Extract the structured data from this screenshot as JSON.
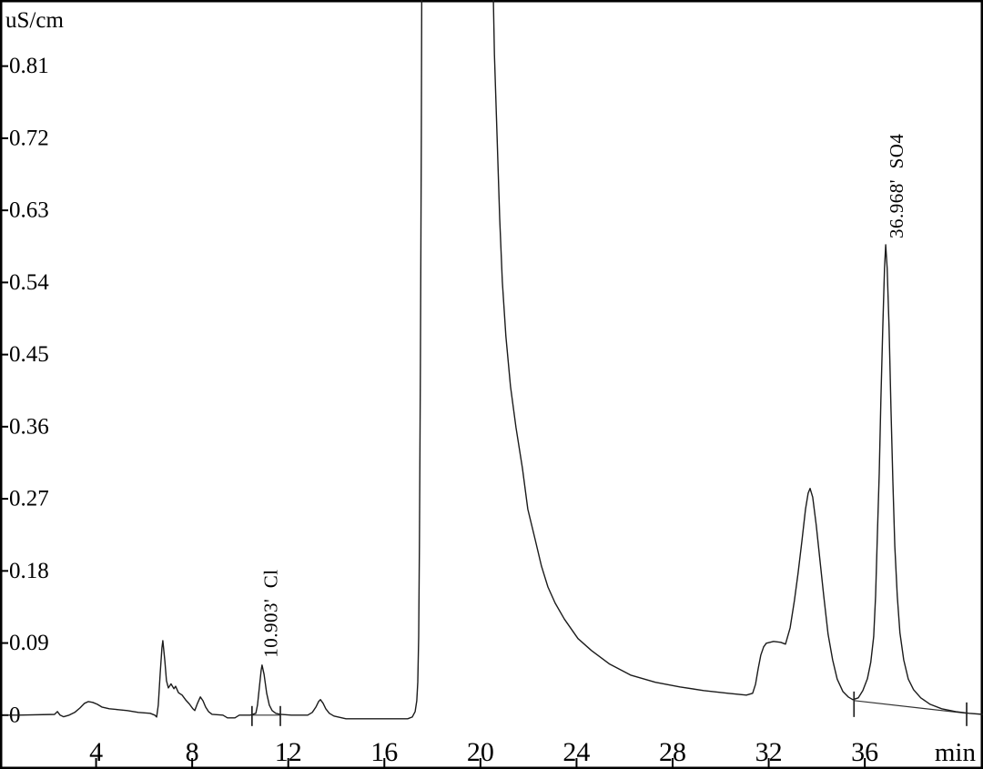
{
  "chart_data": {
    "type": "line",
    "title": "",
    "ylabel": "uS/cm",
    "xlabel": "min",
    "grid": false,
    "legend": "none",
    "x_axis": {
      "min": 0,
      "max": 40.92,
      "ticks": [
        4,
        8,
        12,
        16,
        20,
        24,
        28,
        32,
        36
      ],
      "tick_labels": [
        "4",
        "8",
        "12",
        "16",
        "20",
        "24",
        "28",
        "32",
        "36"
      ],
      "unit_label": "min"
    },
    "y_axis": {
      "min": -0.0672,
      "max": 0.8925,
      "ticks": [
        0,
        0.09,
        0.18,
        0.27,
        0.36,
        0.45,
        0.54,
        0.63,
        0.72,
        0.81
      ],
      "tick_labels": [
        "0",
        "0.09",
        "0.18",
        "0.27",
        "0.36",
        "0.45",
        "0.54",
        "0.63",
        "0.72",
        "0.81"
      ],
      "unit_label": "uS/cm"
    },
    "peaks": [
      {
        "label": "10.903'  Cl",
        "retention_time_min": 10.903,
        "analyte": "Cl",
        "apex_t": 10.91,
        "apex_v": 0.0625,
        "label_t": 11.27,
        "label_v": 0.0716
      },
      {
        "label": "36.968'  SO4",
        "retention_time_min": 36.968,
        "analyte": "SO4",
        "apex_t": 36.87,
        "apex_v": 0.587,
        "label_t": 37.32,
        "label_v": 0.595
      }
    ],
    "unlabeled_features": [
      {
        "t": 3.7,
        "v": 0.017,
        "note": "broad injection bump"
      },
      {
        "t": 6.78,
        "v": 0.093,
        "note": "sharp early peak"
      },
      {
        "t": 7.2,
        "v": 0.038,
        "note": "trailing shoulder"
      },
      {
        "t": 8.34,
        "v": 0.023,
        "note": "small peak"
      },
      {
        "t": 13.34,
        "v": 0.019,
        "note": "small peak"
      },
      {
        "t": 19.0,
        "v": "off-scale",
        "note": "large eluent/system peak, clipped at top from t=17.6 to t=20.5"
      },
      {
        "t": 32.2,
        "v": 0.092,
        "note": "shoulder hump"
      },
      {
        "t": 33.72,
        "v": 0.283,
        "note": "unlabeled large peak"
      }
    ],
    "integration_ticks": [
      {
        "t": 10.49,
        "v1": 0.0114,
        "v2": -0.0136
      },
      {
        "t": 11.67,
        "v1": 0.0114,
        "v2": -0.0136
      },
      {
        "t": 35.55,
        "v1": 0.0295,
        "v2": -0.0023
      },
      {
        "t": 40.24,
        "v1": 0.0159,
        "v2": -0.0136
      }
    ],
    "integration_baselines": [
      {
        "t1": 10.49,
        "v1": 0.0,
        "t2": 11.67,
        "v2": 0.0
      },
      {
        "t1": 35.55,
        "v1": 0.0182,
        "t2": 40.24,
        "v2": 0.0023
      }
    ],
    "trace": [
      [
        0.15,
        0
      ],
      [
        0.76,
        0
      ],
      [
        2.27,
        0.001
      ],
      [
        2.39,
        0.0045
      ],
      [
        2.5,
        0
      ],
      [
        2.65,
        -0.002
      ],
      [
        2.88,
        0
      ],
      [
        3.11,
        0.0034
      ],
      [
        3.33,
        0.009
      ],
      [
        3.52,
        0.0148
      ],
      [
        3.68,
        0.017
      ],
      [
        3.86,
        0.0159
      ],
      [
        4.05,
        0.0136
      ],
      [
        4.24,
        0.0102
      ],
      [
        4.55,
        0.008
      ],
      [
        4.92,
        0.0068
      ],
      [
        5.3,
        0.0057
      ],
      [
        5.76,
        0.0034
      ],
      [
        6.25,
        0.0023
      ],
      [
        6.44,
        0
      ],
      [
        6.52,
        -0.0023
      ],
      [
        6.59,
        0.0125
      ],
      [
        6.67,
        0.052
      ],
      [
        6.74,
        0.084
      ],
      [
        6.78,
        0.093
      ],
      [
        6.86,
        0.068
      ],
      [
        6.93,
        0.043
      ],
      [
        7.01,
        0.034
      ],
      [
        7.12,
        0.039
      ],
      [
        7.24,
        0.033
      ],
      [
        7.31,
        0.036
      ],
      [
        7.43,
        0.028
      ],
      [
        7.58,
        0.025
      ],
      [
        7.73,
        0.019
      ],
      [
        7.88,
        0.014
      ],
      [
        8.03,
        0.008
      ],
      [
        8.11,
        0.0057
      ],
      [
        8.22,
        0.0148
      ],
      [
        8.34,
        0.0227
      ],
      [
        8.45,
        0.018
      ],
      [
        8.56,
        0.0102
      ],
      [
        8.68,
        0.0045
      ],
      [
        8.83,
        0.0011
      ],
      [
        9.28,
        0
      ],
      [
        9.47,
        -0.0034
      ],
      [
        9.78,
        -0.0034
      ],
      [
        9.96,
        0
      ],
      [
        10.42,
        0
      ],
      [
        10.65,
        0.0023
      ],
      [
        10.72,
        0.0125
      ],
      [
        10.8,
        0.0352
      ],
      [
        10.87,
        0.0557
      ],
      [
        10.91,
        0.0625
      ],
      [
        10.99,
        0.0511
      ],
      [
        11.1,
        0.0273
      ],
      [
        11.21,
        0.0125
      ],
      [
        11.33,
        0.0057
      ],
      [
        11.48,
        0.0023
      ],
      [
        11.67,
        0.0011
      ],
      [
        12.13,
        0
      ],
      [
        12.81,
        0
      ],
      [
        13.0,
        0.0034
      ],
      [
        13.15,
        0.0102
      ],
      [
        13.26,
        0.017
      ],
      [
        13.34,
        0.0193
      ],
      [
        13.45,
        0.0148
      ],
      [
        13.56,
        0.008
      ],
      [
        13.71,
        0.0023
      ],
      [
        13.9,
        -0.0011
      ],
      [
        14.4,
        -0.0045
      ],
      [
        15.9,
        -0.0045
      ],
      [
        16.97,
        -0.0045
      ],
      [
        17.16,
        -0.0023
      ],
      [
        17.28,
        0.0045
      ],
      [
        17.35,
        0.018
      ],
      [
        17.39,
        0.041
      ],
      [
        17.43,
        0.098
      ],
      [
        17.46,
        0.211
      ],
      [
        17.5,
        0.439
      ],
      [
        17.54,
        0.723
      ],
      [
        17.56,
        0.95
      ],
      [
        20.5,
        0.95
      ],
      [
        20.58,
        0.825
      ],
      [
        20.69,
        0.723
      ],
      [
        20.8,
        0.62
      ],
      [
        20.91,
        0.541
      ],
      [
        21.06,
        0.473
      ],
      [
        21.25,
        0.41
      ],
      [
        21.48,
        0.359
      ],
      [
        21.75,
        0.308
      ],
      [
        21.97,
        0.257
      ],
      [
        22.28,
        0.219
      ],
      [
        22.54,
        0.186
      ],
      [
        22.81,
        0.16
      ],
      [
        23.11,
        0.14
      ],
      [
        23.49,
        0.12
      ],
      [
        24.06,
        0.0955
      ],
      [
        24.62,
        0.0807
      ],
      [
        25.38,
        0.0636
      ],
      [
        26.25,
        0.05
      ],
      [
        27.28,
        0.041
      ],
      [
        28.3,
        0.0352
      ],
      [
        29.29,
        0.0307
      ],
      [
        30.31,
        0.0273
      ],
      [
        31.07,
        0.025
      ],
      [
        31.33,
        0.0273
      ],
      [
        31.45,
        0.0386
      ],
      [
        31.56,
        0.058
      ],
      [
        31.67,
        0.075
      ],
      [
        31.79,
        0.0852
      ],
      [
        31.9,
        0.0898
      ],
      [
        32.2,
        0.092
      ],
      [
        32.5,
        0.0909
      ],
      [
        32.7,
        0.0886
      ],
      [
        32.89,
        0.109
      ],
      [
        33.07,
        0.143
      ],
      [
        33.22,
        0.177
      ],
      [
        33.38,
        0.217
      ],
      [
        33.53,
        0.257
      ],
      [
        33.64,
        0.277
      ],
      [
        33.72,
        0.283
      ],
      [
        33.83,
        0.272
      ],
      [
        33.98,
        0.237
      ],
      [
        34.13,
        0.194
      ],
      [
        34.29,
        0.149
      ],
      [
        34.47,
        0.101
      ],
      [
        34.66,
        0.069
      ],
      [
        34.85,
        0.045
      ],
      [
        35.09,
        0.0295
      ],
      [
        35.31,
        0.0227
      ],
      [
        35.5,
        0.0193
      ],
      [
        35.73,
        0.0216
      ],
      [
        35.92,
        0.0307
      ],
      [
        36.11,
        0.0455
      ],
      [
        36.25,
        0.066
      ],
      [
        36.37,
        0.098
      ],
      [
        36.45,
        0.149
      ],
      [
        36.52,
        0.223
      ],
      [
        36.6,
        0.302
      ],
      [
        36.67,
        0.393
      ],
      [
        36.75,
        0.484
      ],
      [
        36.82,
        0.558
      ],
      [
        36.87,
        0.587
      ],
      [
        36.93,
        0.558
      ],
      [
        37.01,
        0.484
      ],
      [
        37.09,
        0.382
      ],
      [
        37.17,
        0.291
      ],
      [
        37.25,
        0.211
      ],
      [
        37.35,
        0.149
      ],
      [
        37.46,
        0.103
      ],
      [
        37.62,
        0.069
      ],
      [
        37.81,
        0.045
      ],
      [
        38.03,
        0.0318
      ],
      [
        38.33,
        0.0216
      ],
      [
        38.72,
        0.0136
      ],
      [
        39.2,
        0.008
      ],
      [
        39.78,
        0.0045
      ],
      [
        40.34,
        0.0023
      ],
      [
        40.92,
        0.001
      ]
    ],
    "colors": {
      "trace": "#1b1b1b",
      "axis": "#000000",
      "text": "#000000",
      "background": "#ffffff"
    }
  }
}
